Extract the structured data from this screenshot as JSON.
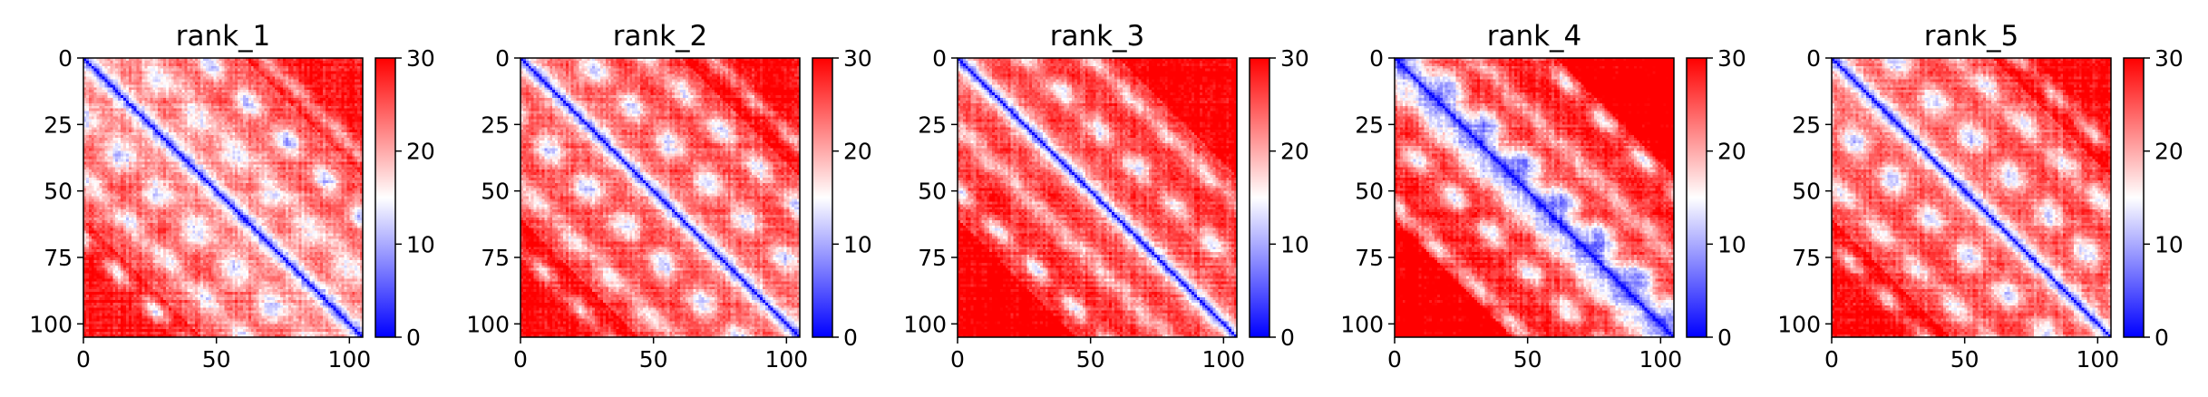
{
  "chart_data": [
    {
      "type": "heatmap",
      "title": "rank_1",
      "x_ticks": [
        0,
        50,
        100
      ],
      "y_ticks": [
        0,
        25,
        50,
        75,
        100
      ],
      "xlim": [
        0,
        105
      ],
      "ylim": [
        105,
        0
      ],
      "colorbar": {
        "ticks": [
          0,
          10,
          20,
          30
        ],
        "range": [
          0,
          30
        ],
        "colormap": "bwr"
      },
      "matrix_size": 105,
      "pattern": {
        "diagonal_band": "low (blue)",
        "off_diagonal": "mostly high (red)",
        "low_value_streaks": "several parallel to diagonal"
      }
    },
    {
      "type": "heatmap",
      "title": "rank_2",
      "x_ticks": [
        0,
        50,
        100
      ],
      "y_ticks": [
        0,
        25,
        50,
        75,
        100
      ],
      "xlim": [
        0,
        105
      ],
      "ylim": [
        105,
        0
      ],
      "colorbar": {
        "ticks": [
          0,
          10,
          20,
          30
        ],
        "range": [
          0,
          30
        ],
        "colormap": "bwr"
      },
      "matrix_size": 105,
      "pattern": {
        "diagonal_band": "low (blue)",
        "off_diagonal": "mostly high (red)",
        "low_value_streaks": "several parallel to diagonal"
      }
    },
    {
      "type": "heatmap",
      "title": "rank_3",
      "x_ticks": [
        0,
        50,
        100
      ],
      "y_ticks": [
        0,
        25,
        50,
        75,
        100
      ],
      "xlim": [
        0,
        105
      ],
      "ylim": [
        105,
        0
      ],
      "colorbar": {
        "ticks": [
          0,
          10,
          20,
          30
        ],
        "range": [
          0,
          30
        ],
        "colormap": "bwr"
      },
      "matrix_size": 105,
      "pattern": {
        "diagonal_band": "low (blue)",
        "off_diagonal": "mostly high (red)",
        "low_value_streaks": "faint"
      }
    },
    {
      "type": "heatmap",
      "title": "rank_4",
      "x_ticks": [
        0,
        50,
        100
      ],
      "y_ticks": [
        0,
        25,
        50,
        75,
        100
      ],
      "xlim": [
        0,
        105
      ],
      "ylim": [
        105,
        0
      ],
      "colorbar": {
        "ticks": [
          0,
          10,
          20,
          30
        ],
        "range": [
          0,
          30
        ],
        "colormap": "bwr"
      },
      "matrix_size": 105,
      "pattern": {
        "diagonal_band": "low (blue), wide",
        "off_diagonal": "high (red)",
        "low_value_streaks": "parallel near diagonal"
      }
    },
    {
      "type": "heatmap",
      "title": "rank_5",
      "x_ticks": [
        0,
        50,
        100
      ],
      "y_ticks": [
        0,
        25,
        50,
        75,
        100
      ],
      "xlim": [
        0,
        105
      ],
      "ylim": [
        105,
        0
      ],
      "colorbar": {
        "ticks": [
          0,
          10,
          20,
          30
        ],
        "range": [
          0,
          30
        ],
        "colormap": "bwr"
      },
      "matrix_size": 105,
      "pattern": {
        "diagonal_band": "low (blue)",
        "off_diagonal": "mostly high (red)",
        "low_value_streaks": "several parallel to diagonal"
      }
    }
  ]
}
